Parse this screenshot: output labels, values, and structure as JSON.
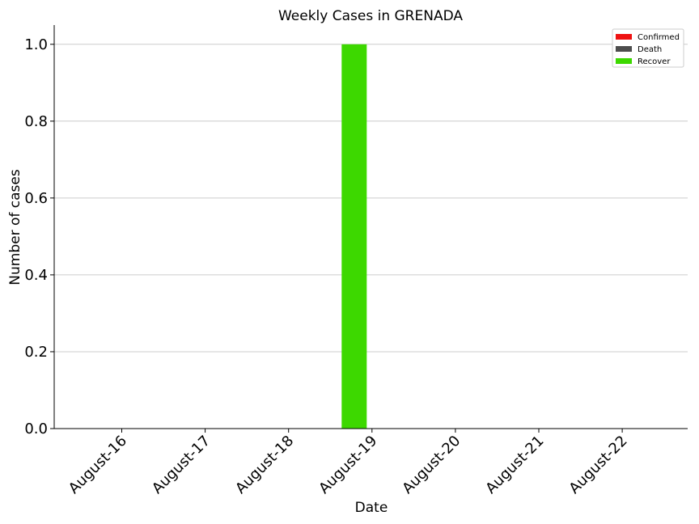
{
  "chart_data": {
    "type": "bar",
    "title": "Weekly Cases in GRENADA",
    "xlabel": "Date",
    "ylabel": "Number of cases",
    "categories": [
      "August-16",
      "August-17",
      "August-18",
      "August-19",
      "August-20",
      "August-21",
      "August-22"
    ],
    "series": [
      {
        "name": "Confirmed",
        "color": "#ee1111",
        "values": [
          0,
          0,
          0,
          0,
          0,
          0,
          0
        ]
      },
      {
        "name": "Death",
        "color": "#4d4d4d",
        "values": [
          0,
          0,
          0,
          0,
          0,
          0,
          0
        ]
      },
      {
        "name": "Recover",
        "color": "#3dd800",
        "values": [
          0,
          0,
          0,
          1,
          0,
          0,
          0
        ]
      }
    ],
    "ylim": [
      0,
      1.05
    ],
    "yticks": [
      "0.0",
      "0.2",
      "0.4",
      "0.6",
      "0.8",
      "1.0"
    ],
    "grid": "y",
    "legend": "top-right"
  }
}
